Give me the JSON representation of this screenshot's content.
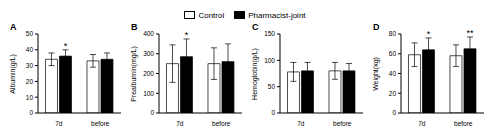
{
  "chart_data": [
    {
      "type": "bar",
      "title": "A",
      "y_label": "Albumin(g/L)",
      "categories": [
        "7d",
        "before discharge"
      ],
      "legend": "top",
      "series": [
        {
          "name": "Control",
          "color": "#ffffff",
          "values": [
            34,
            33
          ],
          "errors": [
            4,
            4
          ]
        },
        {
          "name": "Pharmacist-joint",
          "color": "#000000",
          "values": [
            36,
            34
          ],
          "errors": [
            4,
            4
          ]
        }
      ],
      "ylim": [
        0,
        50
      ],
      "yticks": [
        0,
        10,
        20,
        30,
        40,
        50
      ],
      "annotations": [
        {
          "category": "7d",
          "series": "Pharmacist-joint",
          "text": "*"
        }
      ]
    },
    {
      "type": "bar",
      "title": "B",
      "y_label": "Prealbumin(mg/L)",
      "categories": [
        "7d",
        "before discharge"
      ],
      "series": [
        {
          "name": "Control",
          "color": "#ffffff",
          "values": [
            250,
            250
          ],
          "errors": [
            95,
            80
          ]
        },
        {
          "name": "Pharmacist-joint",
          "color": "#000000",
          "values": [
            285,
            260
          ],
          "errors": [
            90,
            90
          ]
        }
      ],
      "ylim": [
        0,
        400
      ],
      "yticks": [
        0,
        100,
        200,
        300,
        400
      ],
      "annotations": [
        {
          "category": "7d",
          "series": "Pharmacist-joint",
          "text": "*"
        }
      ]
    },
    {
      "type": "bar",
      "title": "C",
      "y_label": "Hemoglobin(g/L)",
      "categories": [
        "7d",
        "before discharge"
      ],
      "series": [
        {
          "name": "Control",
          "color": "#ffffff",
          "values": [
            78,
            80
          ],
          "errors": [
            18,
            16
          ]
        },
        {
          "name": "Pharmacist-joint",
          "color": "#000000",
          "values": [
            80,
            80
          ],
          "errors": [
            16,
            14
          ]
        }
      ],
      "ylim": [
        0,
        150
      ],
      "yticks": [
        0,
        50,
        100,
        150
      ],
      "annotations": []
    },
    {
      "type": "bar",
      "title": "D",
      "y_label": "Weight(kg)",
      "categories": [
        "7d",
        "before discharge"
      ],
      "series": [
        {
          "name": "Control",
          "color": "#ffffff",
          "values": [
            59,
            58
          ],
          "errors": [
            12,
            11
          ]
        },
        {
          "name": "Pharmacist-joint",
          "color": "#000000",
          "values": [
            64,
            65
          ],
          "errors": [
            12,
            12
          ]
        }
      ],
      "ylim": [
        0,
        80
      ],
      "yticks": [
        0,
        20,
        40,
        60,
        80
      ],
      "annotations": [
        {
          "category": "7d",
          "series": "Pharmacist-joint",
          "text": "*"
        },
        {
          "category": "before discharge",
          "series": "Pharmacist-joint",
          "text": "**"
        }
      ]
    }
  ]
}
